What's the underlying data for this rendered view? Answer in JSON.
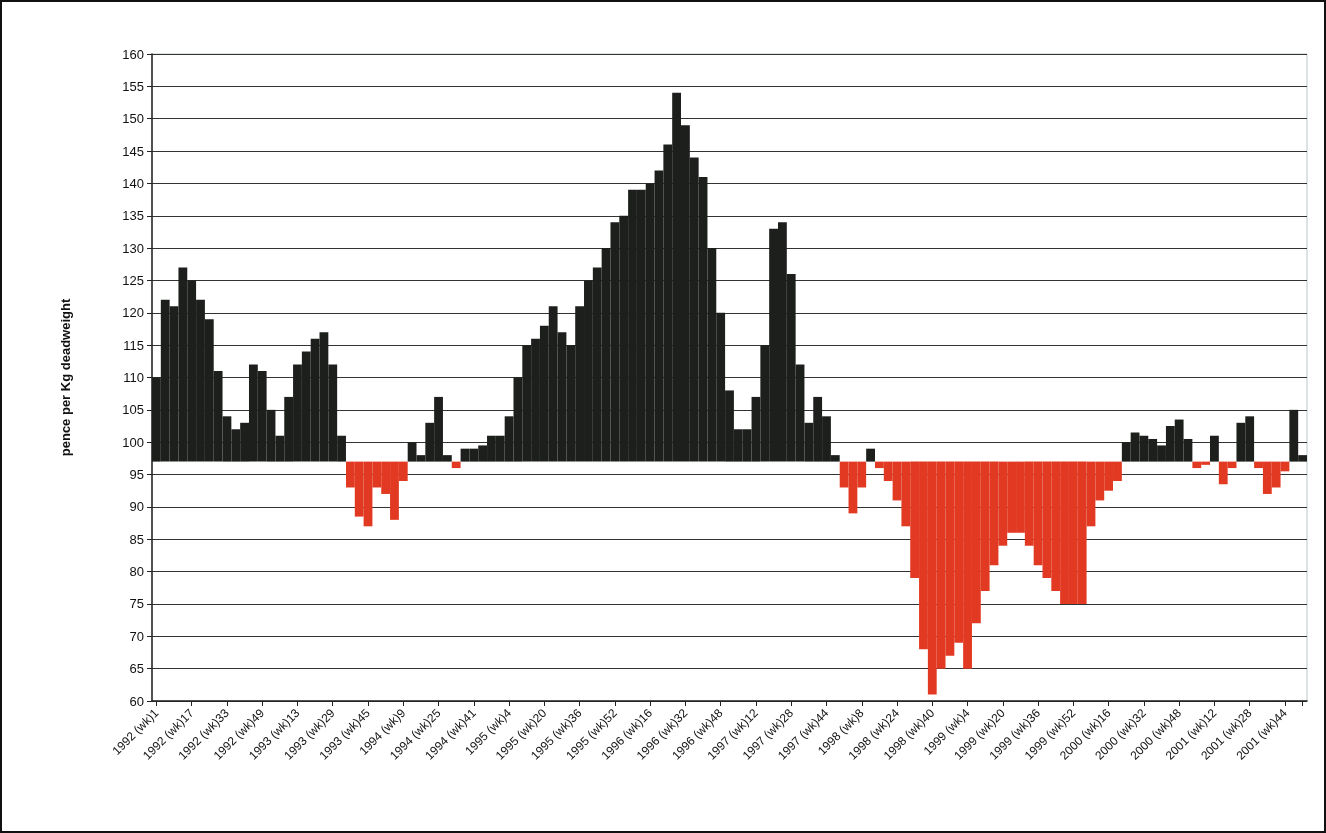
{
  "chart_data": {
    "type": "bar",
    "ylabel": "pence per Kg deadweight",
    "categories": [
      "1992 (wk)1",
      null,
      null,
      null,
      "1992 (wk)17",
      null,
      null,
      null,
      "1992 (wk)33",
      null,
      null,
      null,
      "1992 (wk)49",
      null,
      null,
      null,
      "1993 (wk)13",
      null,
      null,
      null,
      "1993 (wk)29",
      null,
      null,
      null,
      "1993 (wk)45",
      null,
      null,
      null,
      "1994 (wk)9",
      null,
      null,
      null,
      "1994 (wk)25",
      null,
      null,
      null,
      "1994 (wk)41",
      null,
      null,
      null,
      "1995 (wk)4",
      null,
      null,
      null,
      "1995 (wk)20",
      null,
      null,
      null,
      "1995 (wk)36",
      null,
      null,
      null,
      "1995 (wk)52",
      null,
      null,
      null,
      "1996 (wk)16",
      null,
      null,
      null,
      "1996 (wk)32",
      null,
      null,
      null,
      "1996 (wk)48",
      null,
      null,
      null,
      "1997 (wk)12",
      null,
      null,
      null,
      "1997 (wk)28",
      null,
      null,
      null,
      "1997 (wk)44",
      null,
      null,
      null,
      "1998 (wk)8",
      null,
      null,
      null,
      "1998 (wk)24",
      null,
      null,
      null,
      "1998 (wk)40",
      null,
      null,
      null,
      "1999 (wk)4",
      null,
      null,
      null,
      "1999 (wk)20",
      null,
      null,
      null,
      "1999 (wk)36",
      null,
      null,
      null,
      "1999 (wk)52",
      null,
      null,
      null,
      "2000 (wk)16",
      null,
      null,
      null,
      "2000 (wk)32",
      null,
      null,
      null,
      "2000 (wk)48",
      null,
      null,
      null,
      "2001 (wk)12",
      null,
      null,
      null,
      "2001 (wk)28",
      null,
      null,
      null,
      "2001 (wk)44",
      null,
      null
    ],
    "base": [
      97,
      97,
      97,
      97,
      97,
      97,
      97,
      97,
      97,
      97,
      97,
      97,
      97,
      97,
      97,
      97,
      97,
      97,
      97,
      97,
      97,
      97,
      97,
      97,
      97,
      97,
      97,
      97,
      97,
      97,
      97,
      97,
      97,
      97,
      97,
      97,
      97,
      97,
      97,
      97,
      97,
      97,
      97,
      97,
      97,
      97,
      97,
      97,
      97,
      97,
      97,
      97,
      97,
      97,
      97,
      97,
      97,
      97,
      97,
      97,
      97,
      97,
      97,
      97,
      97,
      97,
      97,
      97,
      97,
      97,
      97,
      97,
      97,
      97,
      97,
      97,
      97,
      97,
      97,
      97,
      97,
      97,
      97,
      97,
      97,
      97,
      97,
      97,
      97,
      97,
      97,
      97,
      97,
      97,
      97,
      97,
      97,
      97,
      97,
      97,
      97,
      97,
      97,
      97,
      97,
      97,
      97,
      97,
      97,
      97,
      97,
      97,
      97,
      97,
      97,
      97,
      97,
      97,
      97,
      97,
      97,
      97,
      97,
      97,
      97,
      97,
      97,
      97,
      97,
      97,
      97
    ],
    "values": [
      13,
      25,
      24,
      30,
      28,
      25,
      22,
      14,
      7,
      5,
      6,
      15,
      14,
      8,
      4,
      10,
      15,
      17,
      19,
      20,
      15,
      4,
      -4,
      -8.5,
      -10,
      -4,
      -5,
      -9,
      -3,
      3,
      1,
      6,
      10,
      1,
      -1,
      2,
      2,
      2.5,
      4,
      4,
      7,
      13,
      18,
      19,
      21,
      24,
      20,
      18,
      24,
      28,
      30,
      33,
      37,
      38,
      42,
      42,
      43,
      45,
      49,
      57,
      52,
      47,
      44,
      33,
      23,
      11,
      5,
      5,
      10,
      18,
      36,
      37,
      29,
      15,
      6,
      10,
      7,
      1,
      -4,
      -8,
      -4,
      2,
      -1,
      -3,
      -6,
      -10,
      -18,
      -29,
      -36,
      -32,
      -30,
      -28,
      -32,
      -25,
      -20,
      -16,
      -13,
      -11,
      -11,
      -13,
      -16,
      -18,
      -20,
      -22,
      -22,
      -22,
      -10,
      -6,
      -4.5,
      -3,
      3,
      4.5,
      4,
      3.5,
      2.5,
      5.5,
      6.5,
      3.5,
      -1,
      -0.5,
      4,
      -3.5,
      -1,
      6,
      7,
      -1,
      -5,
      -4,
      -1.5,
      8,
      1
    ],
    "colors": [
      "#1c1f1c",
      "#1c1f1c",
      "#1c1f1c",
      "#1c1f1c",
      "#1c1f1c",
      "#1c1f1c",
      "#1c1f1c",
      "#1c1f1c",
      "#1c1f1c",
      "#1c1f1c",
      "#1c1f1c",
      "#1c1f1c",
      "#1c1f1c",
      "#1c1f1c",
      "#1c1f1c",
      "#1c1f1c",
      "#1c1f1c",
      "#1c1f1c",
      "#1c1f1c",
      "#1c1f1c",
      "#1c1f1c",
      "#1c1f1c",
      "#e23a22",
      "#e23a22",
      "#e23a22",
      "#e23a22",
      "#e23a22",
      "#e23a22",
      "#e23a22",
      "#1c1f1c",
      "#1c1f1c",
      "#1c1f1c",
      "#1c1f1c",
      "#1c1f1c",
      "#e23a22",
      "#1c1f1c",
      "#1c1f1c",
      "#1c1f1c",
      "#1c1f1c",
      "#1c1f1c",
      "#1c1f1c",
      "#1c1f1c",
      "#1c1f1c",
      "#1c1f1c",
      "#1c1f1c",
      "#1c1f1c",
      "#1c1f1c",
      "#1c1f1c",
      "#1c1f1c",
      "#1c1f1c",
      "#1c1f1c",
      "#1c1f1c",
      "#1c1f1c",
      "#1c1f1c",
      "#1c1f1c",
      "#1c1f1c",
      "#1c1f1c",
      "#1c1f1c",
      "#1c1f1c",
      "#1c1f1c",
      "#1c1f1c",
      "#1c1f1c",
      "#1c1f1c",
      "#1c1f1c",
      "#1c1f1c",
      "#1c1f1c",
      "#1c1f1c",
      "#1c1f1c",
      "#1c1f1c",
      "#1c1f1c",
      "#1c1f1c",
      "#1c1f1c",
      "#1c1f1c",
      "#1c1f1c",
      "#1c1f1c",
      "#1c1f1c",
      "#1c1f1c",
      "#1c1f1c",
      "#e23a22",
      "#e23a22",
      "#e23a22",
      "#1c1f1c",
      "#e23a22",
      "#e23a22",
      "#e23a22",
      "#e23a22",
      "#e23a22",
      "#e23a22",
      "#e23a22",
      "#e23a22",
      "#e23a22",
      "#e23a22",
      "#e23a22",
      "#e23a22",
      "#e23a22",
      "#e23a22",
      "#e23a22",
      "#e23a22",
      "#e23a22",
      "#e23a22",
      "#e23a22",
      "#e23a22",
      "#e23a22",
      "#e23a22",
      "#e23a22",
      "#e23a22",
      "#e23a22",
      "#e23a22",
      "#e23a22",
      "#e23a22",
      "#1c1f1c",
      "#1c1f1c",
      "#1c1f1c",
      "#1c1f1c",
      "#1c1f1c",
      "#1c1f1c",
      "#1c1f1c",
      "#1c1f1c",
      "#e23a22",
      "#e23a22",
      "#1c1f1c",
      "#e23a22",
      "#e23a22",
      "#1c1f1c",
      "#1c1f1c",
      "#e23a22",
      "#e23a22",
      "#e23a22",
      "#e23a22",
      "#1c1f1c",
      "#1c1f1c"
    ],
    "ylim": [
      60,
      160
    ],
    "yticks": [
      60,
      65,
      70,
      75,
      80,
      85,
      90,
      95,
      100,
      105,
      110,
      115,
      120,
      125,
      130,
      135,
      140,
      145,
      150,
      155,
      160
    ],
    "grid": "y"
  }
}
